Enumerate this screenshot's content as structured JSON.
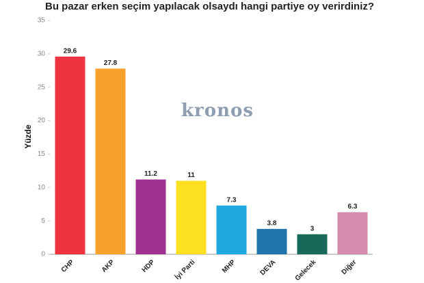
{
  "chart_data": {
    "type": "bar",
    "title": "Bu pazar erken seçim yapılacak olsaydı hangi partiye oy verirdiniz?",
    "y_label": "Yüzde",
    "watermark": "kronos",
    "categories": [
      "CHP",
      "AKP",
      "HDP",
      "İyi Parti",
      "MHP",
      "DEVA",
      "Gelecek",
      "Diğer"
    ],
    "values": [
      29.6,
      27.8,
      11.2,
      11,
      7.3,
      3.8,
      3,
      6.3
    ],
    "colors": [
      "#ef3340",
      "#f6a22d",
      "#a0318f",
      "#fde021",
      "#1ea9e1",
      "#1f74ac",
      "#176959",
      "#d58bae"
    ],
    "ylim": [
      0,
      35
    ],
    "yticks": [
      0,
      5,
      10,
      15,
      20,
      25,
      30,
      35
    ],
    "grid": false
  }
}
